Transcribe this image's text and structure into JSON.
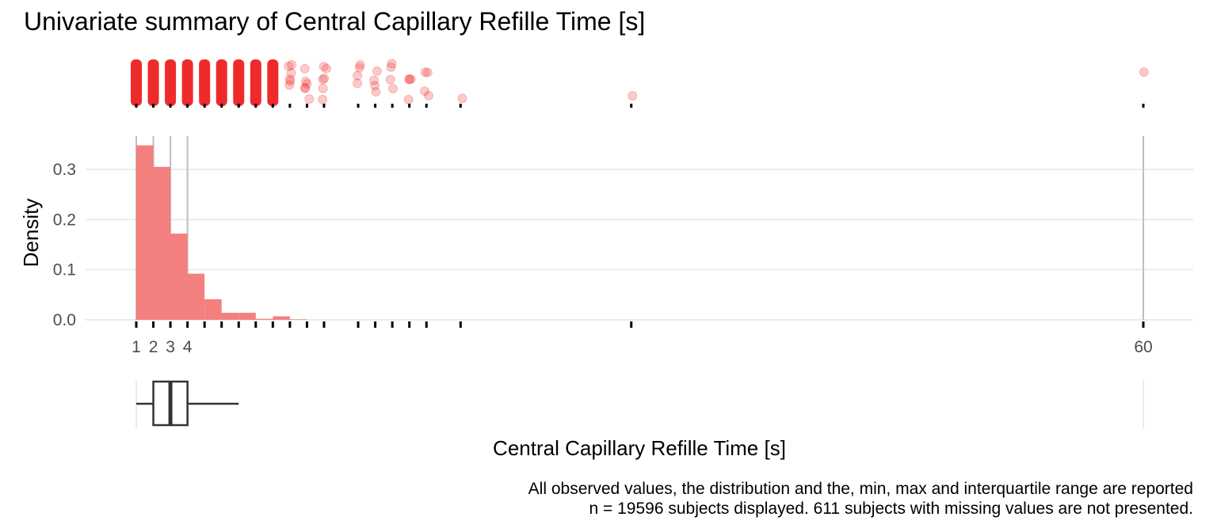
{
  "chart_data": {
    "type": "histogram",
    "title": "Univariate summary of Central Capillary Refille Time [s]",
    "xlabel": "Central Capillary Refille Time [s]",
    "ylabel": "Density",
    "x_tick_labels": [
      "1",
      "2",
      "3",
      "4",
      "60"
    ],
    "y_tick_labels": [
      "0.0",
      "0.1",
      "0.2",
      "0.3"
    ],
    "ylim": [
      0,
      0.35
    ],
    "xlim": [
      1,
      60
    ],
    "bin_width": 1,
    "bars": [
      {
        "x_start": 1,
        "x_end": 2,
        "density": 0.348
      },
      {
        "x_start": 2,
        "x_end": 3,
        "density": 0.305
      },
      {
        "x_start": 3,
        "x_end": 4,
        "density": 0.172
      },
      {
        "x_start": 4,
        "x_end": 5,
        "density": 0.092
      },
      {
        "x_start": 5,
        "x_end": 6,
        "density": 0.041
      },
      {
        "x_start": 6,
        "x_end": 7,
        "density": 0.014
      },
      {
        "x_start": 7,
        "x_end": 8,
        "density": 0.014
      },
      {
        "x_start": 8,
        "x_end": 9,
        "density": 0.002
      },
      {
        "x_start": 9,
        "x_end": 10,
        "density": 0.007
      },
      {
        "x_start": 10,
        "x_end": 11,
        "density": 0.001
      }
    ],
    "observed_values": [
      1,
      2,
      3,
      4,
      5,
      6,
      7,
      8,
      9,
      10,
      11,
      12,
      14,
      15,
      16,
      17,
      18,
      20,
      30,
      60
    ],
    "reference_lines": [
      1,
      2,
      3,
      4,
      60
    ],
    "boxplot": {
      "min": 1,
      "q1": 2,
      "median": 3,
      "q3": 4,
      "whisker_high": 7,
      "max": 60
    },
    "colors": {
      "bar": "#f47f7f",
      "points": "#ee2b2b",
      "grid": "#ebebeb",
      "reference": "#bebebe"
    }
  },
  "captions": {
    "line1": "All observed values, the distribution and the, min, max and interquartile range are reported",
    "line2": "n = 19596 subjects displayed. 611 subjects with missing values are not presented."
  }
}
